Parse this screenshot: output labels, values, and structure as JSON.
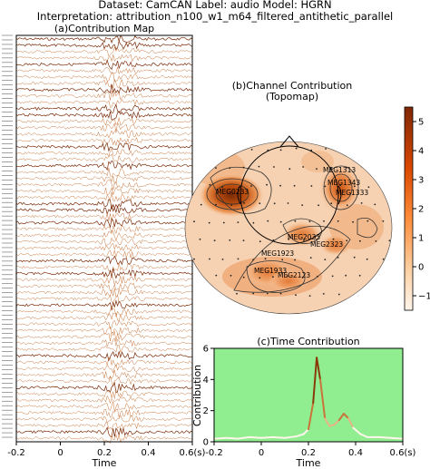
{
  "header": {
    "line1": "Dataset: CamCAN   Label: audio   Model: HGRN",
    "line2": "Interpretation: attribution_n100_w1_m64_filtered_antithetic_parallel"
  },
  "panel_a": {
    "title": "(a)Contribution Map",
    "xlabel": "Time",
    "xticks": [
      "-0.2",
      "0",
      "0.2",
      "0.4",
      "0.6(s)"
    ]
  },
  "panel_b": {
    "title_line1": "(b)Channel Contribution",
    "title_line2": "(Topomap)",
    "colorbar_ticks": [
      "5",
      "4",
      "3",
      "2",
      "1",
      "0",
      "−1"
    ],
    "channel_labels": [
      "MEG1313",
      "MEG1343",
      "MEG1333",
      "MEG0233",
      "MEG2033",
      "MEG2323",
      "MEG1923",
      "MEG1933",
      "MEG2123"
    ]
  },
  "panel_c": {
    "title": "(c)Time Contribution",
    "ylabel": "Contribution",
    "xlabel": "Time",
    "xticks": [
      "-0.2",
      "0",
      "0.2",
      "0.4",
      "0.6(s)"
    ],
    "yticks": [
      "0",
      "2",
      "4",
      "6"
    ]
  },
  "colors": {
    "trace": "#c8743a",
    "time_bg": "#90ee90",
    "peak": "#7a2a05",
    "hot": "#b64a0c",
    "warm": "#e88a4a"
  },
  "chart_data": [
    {
      "type": "line",
      "panel": "(a)Contribution Map",
      "description_free": true,
      "x_range": [
        -0.2,
        0.6
      ],
      "series_count": 64
    },
    {
      "type": "heatmap",
      "panel": "(b)Channel Contribution",
      "colorbar_range": [
        -1.5,
        5.5
      ],
      "hotspots": [
        {
          "label": "MEG0233",
          "value": 5.3
        },
        {
          "label": "MEG1333",
          "value": 3.8
        },
        {
          "label": "MEG2033",
          "value": 2.8
        },
        {
          "label": "MEG1933",
          "value": 2.2
        }
      ]
    },
    {
      "type": "line",
      "panel": "(c)Time Contribution",
      "xlim": [
        -0.2,
        0.6
      ],
      "ylim": [
        0,
        6
      ],
      "x": [
        -0.2,
        -0.15,
        -0.1,
        -0.05,
        0.0,
        0.05,
        0.1,
        0.15,
        0.18,
        0.2,
        0.22,
        0.235,
        0.25,
        0.27,
        0.29,
        0.31,
        0.33,
        0.35,
        0.37,
        0.39,
        0.42,
        0.45,
        0.5,
        0.55,
        0.6
      ],
      "y": [
        0.2,
        0.25,
        0.2,
        0.3,
        0.25,
        0.3,
        0.25,
        0.35,
        0.5,
        0.8,
        2.5,
        5.4,
        4.0,
        1.5,
        1.0,
        1.1,
        1.4,
        1.8,
        1.5,
        0.9,
        0.5,
        0.3,
        0.3,
        0.25,
        0.2
      ]
    }
  ]
}
